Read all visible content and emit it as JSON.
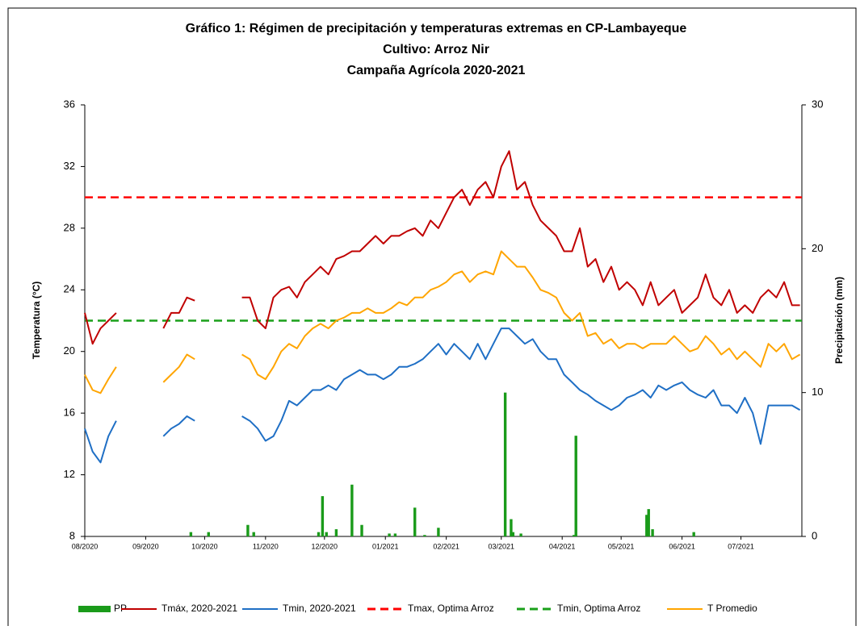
{
  "chart_data": {
    "type": "line",
    "title": [
      "Gráfico 1:  Régimen de precipitación y temperaturas extremas en CP-Lambayeque",
      "Cultivo: Arroz Nir",
      "Campaña Agrícola 2020-2021"
    ],
    "y_label": "Temperatura (°C)",
    "y2_label": "Precipitación (mm)",
    "xlim": [
      0,
      365
    ],
    "xticks": [
      {
        "value": 0,
        "label": "08/2020"
      },
      {
        "value": 31,
        "label": "09/2020"
      },
      {
        "value": 61,
        "label": "10/2020"
      },
      {
        "value": 92,
        "label": "11/2020"
      },
      {
        "value": 122,
        "label": "12/2020"
      },
      {
        "value": 153,
        "label": "01/2021"
      },
      {
        "value": 184,
        "label": "02/2021"
      },
      {
        "value": 212,
        "label": "03/2021"
      },
      {
        "value": 243,
        "label": "04/2021"
      },
      {
        "value": 273,
        "label": "05/2021"
      },
      {
        "value": 304,
        "label": "06/2021"
      },
      {
        "value": 334,
        "label": "07/2021"
      }
    ],
    "ylim": [
      8,
      36
    ],
    "yticks": [
      8,
      12,
      16,
      20,
      24,
      28,
      32,
      36
    ],
    "y2lim": [
      0,
      30
    ],
    "y2ticks": [
      0,
      10,
      20,
      30
    ],
    "legend": "bottom",
    "x": [
      0,
      4,
      8,
      12,
      16,
      20,
      24,
      28,
      32,
      36,
      40,
      44,
      48,
      52,
      56,
      60,
      64,
      68,
      72,
      76,
      80,
      84,
      88,
      92,
      96,
      100,
      104,
      108,
      112,
      116,
      120,
      124,
      128,
      132,
      136,
      140,
      144,
      148,
      152,
      156,
      160,
      164,
      168,
      172,
      176,
      180,
      184,
      188,
      192,
      196,
      200,
      204,
      208,
      212,
      216,
      220,
      224,
      228,
      232,
      236,
      240,
      244,
      248,
      252,
      256,
      260,
      264,
      268,
      272,
      276,
      280,
      284,
      288,
      292,
      296,
      300,
      304,
      308,
      312,
      316,
      320,
      324,
      328,
      332,
      336,
      340,
      344,
      348,
      352,
      356,
      360,
      364
    ],
    "series": [
      {
        "name": "PP",
        "type": "bar",
        "axis": "y2",
        "color": "#1a9b1a",
        "x": [
          54,
          63,
          83,
          86,
          119,
          121,
          123,
          128,
          136,
          141,
          155,
          158,
          168,
          173,
          180,
          214,
          217,
          218,
          222,
          249,
          250,
          286,
          287,
          289,
          310
        ],
        "values": [
          0.3,
          0.3,
          0.8,
          0.3,
          0.3,
          2.8,
          0.3,
          0.5,
          3.6,
          0.8,
          0.2,
          0.2,
          2.0,
          0.1,
          0.6,
          10.0,
          1.2,
          0.3,
          0.2,
          0.1,
          7.0,
          1.5,
          1.9,
          0.5,
          0.3
        ]
      },
      {
        "name": "Tmáx, 2020-2021",
        "type": "line",
        "color": "#c00000",
        "values": [
          22.5,
          20.5,
          21.5,
          22,
          22.5,
          null,
          null,
          null,
          null,
          null,
          21.5,
          22.5,
          22.5,
          23.5,
          23.3,
          null,
          null,
          null,
          null,
          null,
          23.5,
          23.5,
          22,
          21.5,
          23.5,
          24,
          24.2,
          23.5,
          24.5,
          25,
          25.5,
          25,
          26,
          26.2,
          26.5,
          26.5,
          27,
          27.5,
          27,
          27.5,
          27.5,
          27.8,
          28,
          27.5,
          28.5,
          28,
          29,
          30,
          30.5,
          29.5,
          30.5,
          31,
          30,
          32,
          33,
          30.5,
          31,
          29.5,
          28.5,
          28,
          27.5,
          26.5,
          26.5,
          28,
          25.5,
          26,
          24.5,
          25.5,
          24,
          24.5,
          24,
          23,
          24.5,
          23,
          23.5,
          24,
          22.5,
          23,
          23.5,
          25,
          23.5,
          23,
          24,
          22.5,
          23,
          22.5,
          23.5,
          24,
          23.5,
          24.5,
          23,
          23
        ]
      },
      {
        "name": "Tmin, 2020-2021",
        "type": "line",
        "color": "#1f6fc5",
        "values": [
          15,
          13.5,
          12.8,
          14.5,
          15.5,
          null,
          null,
          null,
          null,
          null,
          14.5,
          15,
          15.3,
          15.8,
          15.5,
          null,
          null,
          null,
          null,
          null,
          15.8,
          15.5,
          15,
          14.2,
          14.5,
          15.5,
          16.8,
          16.5,
          17,
          17.5,
          17.5,
          17.8,
          17.5,
          18.2,
          18.5,
          18.8,
          18.5,
          18.5,
          18.2,
          18.5,
          19,
          19,
          19.2,
          19.5,
          20,
          20.5,
          19.8,
          20.5,
          20,
          19.5,
          20.5,
          19.5,
          20.5,
          21.5,
          21.5,
          21,
          20.5,
          20.8,
          20,
          19.5,
          19.5,
          18.5,
          18,
          17.5,
          17.2,
          16.8,
          16.5,
          16.2,
          16.5,
          17,
          17.2,
          17.5,
          17,
          17.8,
          17.5,
          17.8,
          18,
          17.5,
          17.2,
          17,
          17.5,
          16.5,
          16.5,
          16,
          17,
          16,
          14,
          16.5,
          16.5,
          16.5,
          16.5,
          16.2
        ]
      },
      {
        "name": "Tmax, Optima Arroz",
        "type": "hline",
        "dash": true,
        "color": "#ff0000",
        "value": 30
      },
      {
        "name": "Tmin, Optima Arroz",
        "type": "hline",
        "dash": true,
        "color": "#1aa01a",
        "value": 22
      },
      {
        "name": "T Promedio",
        "type": "line",
        "color": "#ffa500",
        "values": [
          18.5,
          17.5,
          17.3,
          18.2,
          19,
          null,
          null,
          null,
          null,
          null,
          18,
          18.5,
          19,
          19.8,
          19.5,
          null,
          null,
          null,
          null,
          null,
          19.8,
          19.5,
          18.5,
          18.2,
          19,
          20,
          20.5,
          20.2,
          21,
          21.5,
          21.8,
          21.5,
          22,
          22.2,
          22.5,
          22.5,
          22.8,
          22.5,
          22.5,
          22.8,
          23.2,
          23,
          23.5,
          23.5,
          24,
          24.2,
          24.5,
          25,
          25.2,
          24.5,
          25,
          25.2,
          25,
          26.5,
          26,
          25.5,
          25.5,
          24.8,
          24,
          23.8,
          23.5,
          22.5,
          22,
          22.5,
          21,
          21.2,
          20.5,
          20.8,
          20.2,
          20.5,
          20.5,
          20.2,
          20.5,
          20.5,
          20.5,
          21,
          20.5,
          20,
          20.2,
          21,
          20.5,
          19.8,
          20.2,
          19.5,
          20,
          19.5,
          19,
          20.5,
          20,
          20.5,
          19.5,
          19.8
        ]
      }
    ]
  }
}
